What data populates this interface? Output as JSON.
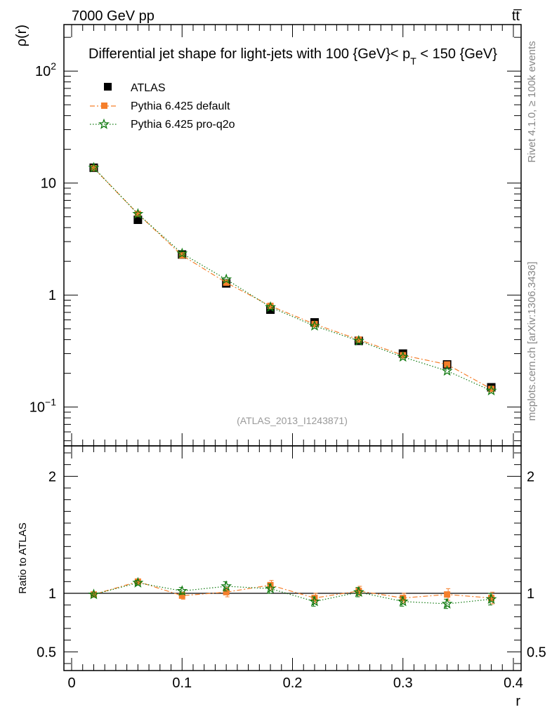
{
  "header": {
    "left": "7000 GeV pp",
    "right": "tt̅"
  },
  "side_labels": {
    "rivet": "Rivet 4.1.0, ≥ 100k events",
    "mcplots": "mcplots.cern.ch [arXiv:1306.3436]"
  },
  "chart_data": [
    {
      "type": "line",
      "title_main": "Differential jet shape for light-jets with 100 {GeV}< p",
      "title_sub": "T",
      "title_end": " < 150 {GeV}",
      "ylabel": "ρ(r)",
      "yscale": "log",
      "ylim": [
        0.045,
        260
      ],
      "xlim": [
        -0.007,
        0.407
      ],
      "watermark": "(ATLAS_2013_I1243871)",
      "y_ticks": [
        {
          "value": 0.1,
          "base": "10",
          "exp": "−1"
        },
        {
          "value": 1,
          "base": "1",
          "exp": ""
        },
        {
          "value": 10,
          "base": "10",
          "exp": ""
        },
        {
          "value": 100,
          "base": "10",
          "exp": "2"
        }
      ],
      "x": [
        0.02,
        0.06,
        0.1,
        0.14,
        0.18,
        0.22,
        0.26,
        0.3,
        0.34,
        0.38
      ],
      "series": [
        {
          "name": "ATLAS",
          "color": "#000000",
          "marker": "square",
          "values": [
            13.7,
            4.7,
            2.3,
            1.27,
            0.74,
            0.57,
            0.39,
            0.3,
            0.24,
            0.15
          ]
        },
        {
          "name": "Pythia 6.425 default",
          "color": "#f57f2b",
          "marker": "square",
          "values": [
            13.6,
            5.3,
            2.26,
            1.29,
            0.8,
            0.55,
            0.4,
            0.29,
            0.24,
            0.145
          ]
        },
        {
          "name": "Pythia 6.425 pro-q2o",
          "color": "#117a11",
          "marker": "star",
          "values": [
            13.7,
            5.3,
            2.35,
            1.38,
            0.78,
            0.53,
            0.39,
            0.28,
            0.21,
            0.14
          ]
        }
      ]
    },
    {
      "type": "line",
      "ylabel": "Ratio to ATLAS",
      "xlabel": "r",
      "ylim": [
        0.34,
        2.26
      ],
      "xlim": [
        -0.007,
        0.407
      ],
      "y_ticks": [
        {
          "value": 0.5,
          "label": "0.5"
        },
        {
          "value": 1,
          "label": "1"
        },
        {
          "value": 2,
          "label": "2"
        }
      ],
      "x_ticks": [
        {
          "value": 0,
          "label": "0"
        },
        {
          "value": 0.1,
          "label": "0.1"
        },
        {
          "value": 0.2,
          "label": "0.2"
        },
        {
          "value": 0.3,
          "label": "0.3"
        },
        {
          "value": 0.4,
          "label": "0.4"
        }
      ],
      "x": [
        0.02,
        0.06,
        0.1,
        0.14,
        0.18,
        0.22,
        0.26,
        0.3,
        0.34,
        0.38
      ],
      "series": [
        {
          "name": "Pythia 6.425 default",
          "color": "#f57f2b",
          "marker": "square",
          "values": [
            0.99,
            1.1,
            0.98,
            1.01,
            1.07,
            0.96,
            1.02,
            0.96,
            0.99,
            0.96
          ],
          "errors": [
            0.01,
            0.02,
            0.03,
            0.04,
            0.04,
            0.04,
            0.04,
            0.04,
            0.05,
            0.05
          ]
        },
        {
          "name": "Pythia 6.425 pro-q2o",
          "color": "#117a11",
          "marker": "star",
          "values": [
            0.99,
            1.09,
            1.02,
            1.06,
            1.04,
            0.93,
            1.01,
            0.93,
            0.91,
            0.95
          ],
          "errors": [
            0.01,
            0.02,
            0.03,
            0.04,
            0.04,
            0.04,
            0.04,
            0.04,
            0.04,
            0.05
          ]
        }
      ]
    }
  ]
}
